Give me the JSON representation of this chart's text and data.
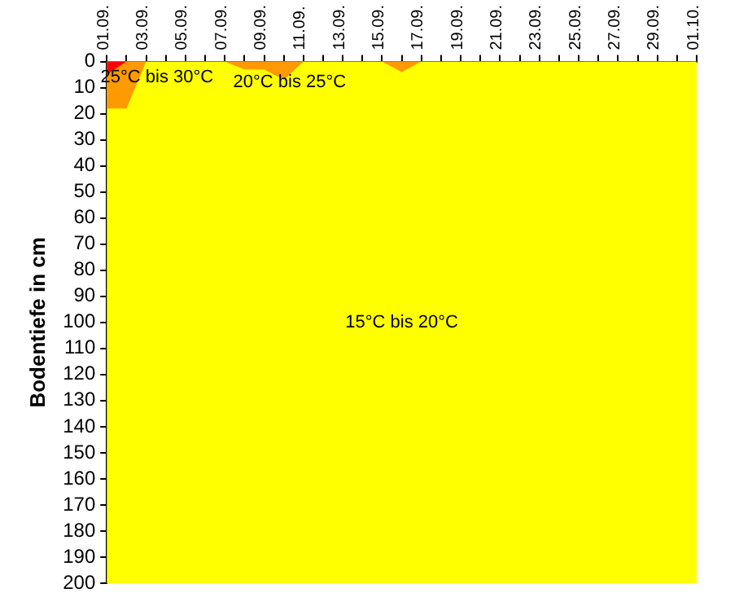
{
  "chart_data": {
    "type": "area",
    "ylabel": "Bodentiefe in cm",
    "categories": [
      "01.09.",
      null,
      "03.09.",
      null,
      "05.09.",
      null,
      "07.09.",
      null,
      "09.09.",
      null,
      "11.09.",
      null,
      "13.09.",
      null,
      "15.09.",
      null,
      "17.09.",
      null,
      "19.09.",
      null,
      "21.09.",
      null,
      "23.09.",
      null,
      "25.09.",
      null,
      "27.09.",
      null,
      "29.09.",
      null,
      "01.10."
    ],
    "series": [
      {
        "color": "#ff0000",
        "values": [
          5,
          0,
          0,
          0,
          0,
          0,
          0,
          0,
          0,
          0,
          0,
          0,
          0,
          0,
          0,
          0,
          0,
          0,
          0,
          0,
          0,
          0,
          0,
          0,
          0,
          0,
          0,
          0,
          0,
          0,
          0
        ]
      },
      {
        "color": "#ff9900",
        "values": [
          18,
          18,
          0,
          0,
          0,
          0,
          0,
          3,
          3,
          7,
          0,
          0,
          0,
          0,
          0,
          4,
          0,
          0,
          0,
          0,
          0,
          0,
          0,
          0,
          0,
          0,
          0,
          0,
          0,
          0,
          0
        ]
      }
    ],
    "bands": [
      {
        "axis": "y",
        "from": 0,
        "to": 200,
        "label": "15°C bis 20°C",
        "color": "#ffff00"
      }
    ],
    "ylim": [
      200,
      0
    ],
    "yticks": [
      0,
      10,
      20,
      30,
      40,
      50,
      60,
      70,
      80,
      90,
      100,
      110,
      120,
      130,
      140,
      150,
      160,
      170,
      180,
      190,
      200
    ],
    "grid": false,
    "legend": false,
    "marker": "none",
    "annotations": [
      "25°C bis 30°C",
      "20°C bis 25°C"
    ]
  }
}
